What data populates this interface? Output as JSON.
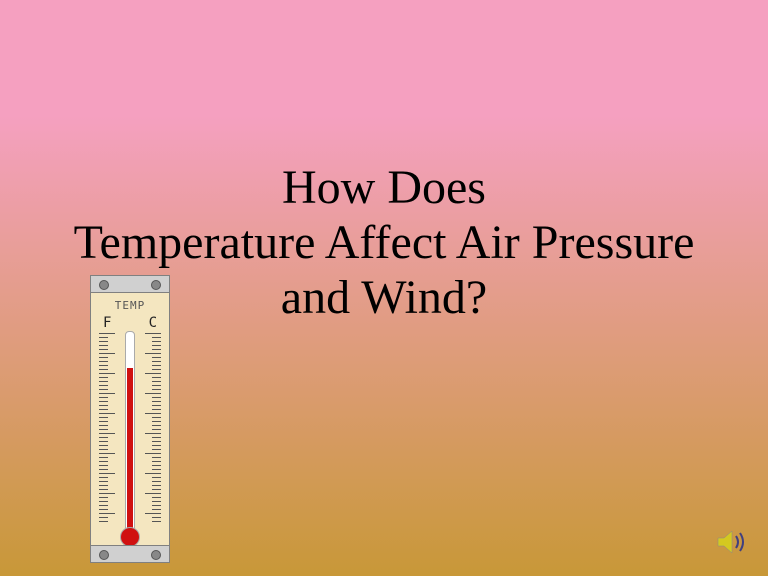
{
  "slide": {
    "background": {
      "gradient_top": "#f5a0c0",
      "gradient_bottom": "#c89838"
    },
    "title": {
      "line1": "How Does",
      "line2": "Temperature Affect Air Pressure",
      "line3": "and Wind?",
      "font_size_pt": 36,
      "color": "#000000"
    },
    "thermometer": {
      "label": "TEMP",
      "scale_left": "F",
      "scale_right": "C",
      "mercury_color": "#d01010",
      "body_color": "#f4e6c0",
      "frame_color": "#d0d0d0",
      "mercury_fill_pct": 82
    },
    "sound_icon": {
      "speaker_color": "#d4c820",
      "wave_color": "#404080"
    }
  }
}
